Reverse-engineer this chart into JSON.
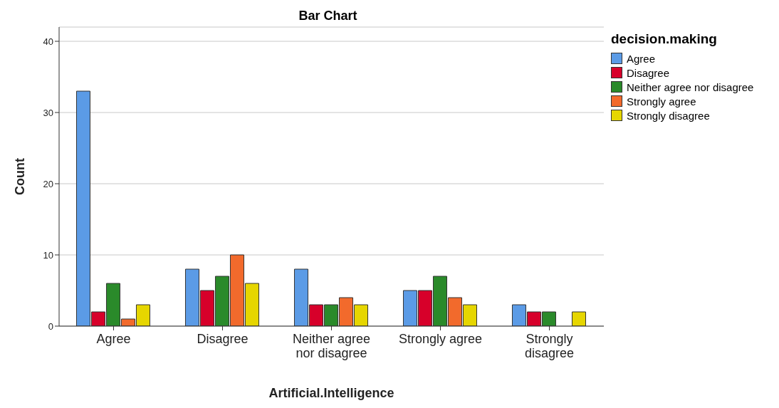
{
  "chart_data": {
    "type": "bar",
    "title": "Bar Chart",
    "xlabel": "Artificial.Intelligence",
    "ylabel": "Count",
    "legend_title": "decision.making",
    "categories": [
      "Agree",
      "Disagree",
      "Neither agree nor disagree",
      "Strongly agree",
      "Strongly disagree"
    ],
    "series": [
      {
        "name": "Agree",
        "color": "#5b9be6",
        "values": [
          33,
          8,
          8,
          5,
          3
        ]
      },
      {
        "name": "Disagree",
        "color": "#d7002a",
        "values": [
          2,
          5,
          3,
          5,
          2
        ]
      },
      {
        "name": "Neither agree nor disagree",
        "color": "#2a8a2a",
        "values": [
          6,
          7,
          3,
          7,
          2
        ]
      },
      {
        "name": "Strongly agree",
        "color": "#f26a2c",
        "values": [
          1,
          10,
          4,
          4,
          null
        ]
      },
      {
        "name": "Strongly disagree",
        "color": "#e6d600",
        "values": [
          3,
          6,
          3,
          3,
          2
        ]
      }
    ],
    "ylim": [
      0,
      42
    ],
    "yticks": [
      0,
      10,
      20,
      30,
      40
    ],
    "grid": "y",
    "legend": "top right"
  }
}
